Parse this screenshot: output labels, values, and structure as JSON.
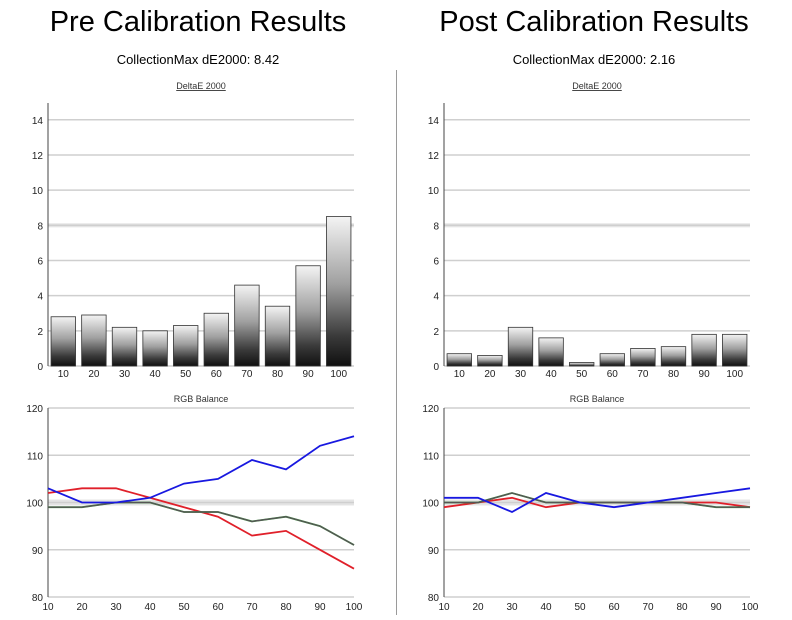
{
  "colors": {
    "red": "#e0202a",
    "green": "#3c9a3c",
    "blue": "#1818e0",
    "gray": "#555555",
    "grid": "#cfcfcf",
    "highlight": "#e4e4e4"
  },
  "panels": [
    {
      "title": "Pre Calibration Results",
      "subtitle": "CollectionMax dE2000: 8.42"
    },
    {
      "title": "Post Calibration Results",
      "subtitle": "CollectionMax dE2000: 2.16"
    }
  ],
  "chart_data": [
    {
      "type": "bar",
      "title": "DeltaE 2000",
      "categories": [
        "10",
        "20",
        "30",
        "40",
        "50",
        "60",
        "70",
        "80",
        "90",
        "100"
      ],
      "values": [
        2.8,
        2.9,
        2.2,
        2.0,
        2.3,
        3.0,
        4.6,
        3.4,
        5.7,
        8.5
      ],
      "y_ticks": [
        "0",
        "2",
        "4",
        "6",
        "8",
        "10",
        "12",
        "14"
      ],
      "ylim": [
        0,
        14.5
      ],
      "highlight_line": 8
    },
    {
      "type": "line",
      "title": "RGB Balance",
      "x": [
        "10",
        "20",
        "30",
        "40",
        "50",
        "60",
        "70",
        "80",
        "90",
        "100"
      ],
      "y_ticks": [
        "80",
        "90",
        "100",
        "110",
        "120"
      ],
      "ylim": [
        80,
        120
      ],
      "highlight_line": 100,
      "series": [
        {
          "color": "red",
          "values": [
            102,
            103,
            103,
            101,
            99,
            97,
            93,
            94,
            90,
            86
          ]
        },
        {
          "color": "green",
          "values": [
            99,
            99,
            100,
            100,
            98,
            98,
            96,
            97,
            95,
            91
          ]
        },
        {
          "color": "gray",
          "values": [
            99,
            99,
            100,
            100,
            98,
            98,
            96,
            97,
            95,
            91
          ]
        },
        {
          "color": "blue",
          "values": [
            103,
            100,
            100,
            101,
            104,
            105,
            109,
            107,
            112,
            114
          ]
        }
      ]
    },
    {
      "type": "bar",
      "title": "DeltaE 2000",
      "categories": [
        "10",
        "20",
        "30",
        "40",
        "50",
        "60",
        "70",
        "80",
        "90",
        "100"
      ],
      "values": [
        0.7,
        0.6,
        2.2,
        1.6,
        0.2,
        0.7,
        1.0,
        1.1,
        1.8,
        1.8
      ],
      "y_ticks": [
        "0",
        "2",
        "4",
        "6",
        "8",
        "10",
        "12",
        "14"
      ],
      "ylim": [
        0,
        14.5
      ],
      "highlight_line": 8
    },
    {
      "type": "line",
      "title": "RGB Balance",
      "x": [
        "10",
        "20",
        "30",
        "40",
        "50",
        "60",
        "70",
        "80",
        "90",
        "100"
      ],
      "y_ticks": [
        "80",
        "90",
        "100",
        "110",
        "120"
      ],
      "ylim": [
        80,
        120
      ],
      "highlight_line": 100,
      "series": [
        {
          "color": "red",
          "values": [
            99,
            100,
            101,
            99,
            100,
            100,
            100,
            100,
            100,
            99
          ]
        },
        {
          "color": "green",
          "values": [
            100,
            100,
            102,
            100,
            100,
            100,
            100,
            100,
            99,
            99
          ]
        },
        {
          "color": "gray",
          "values": [
            100,
            100,
            102,
            100,
            100,
            100,
            100,
            100,
            99,
            99
          ]
        },
        {
          "color": "blue",
          "values": [
            101,
            101,
            98,
            102,
            100,
            99,
            100,
            101,
            102,
            103
          ]
        }
      ]
    }
  ]
}
